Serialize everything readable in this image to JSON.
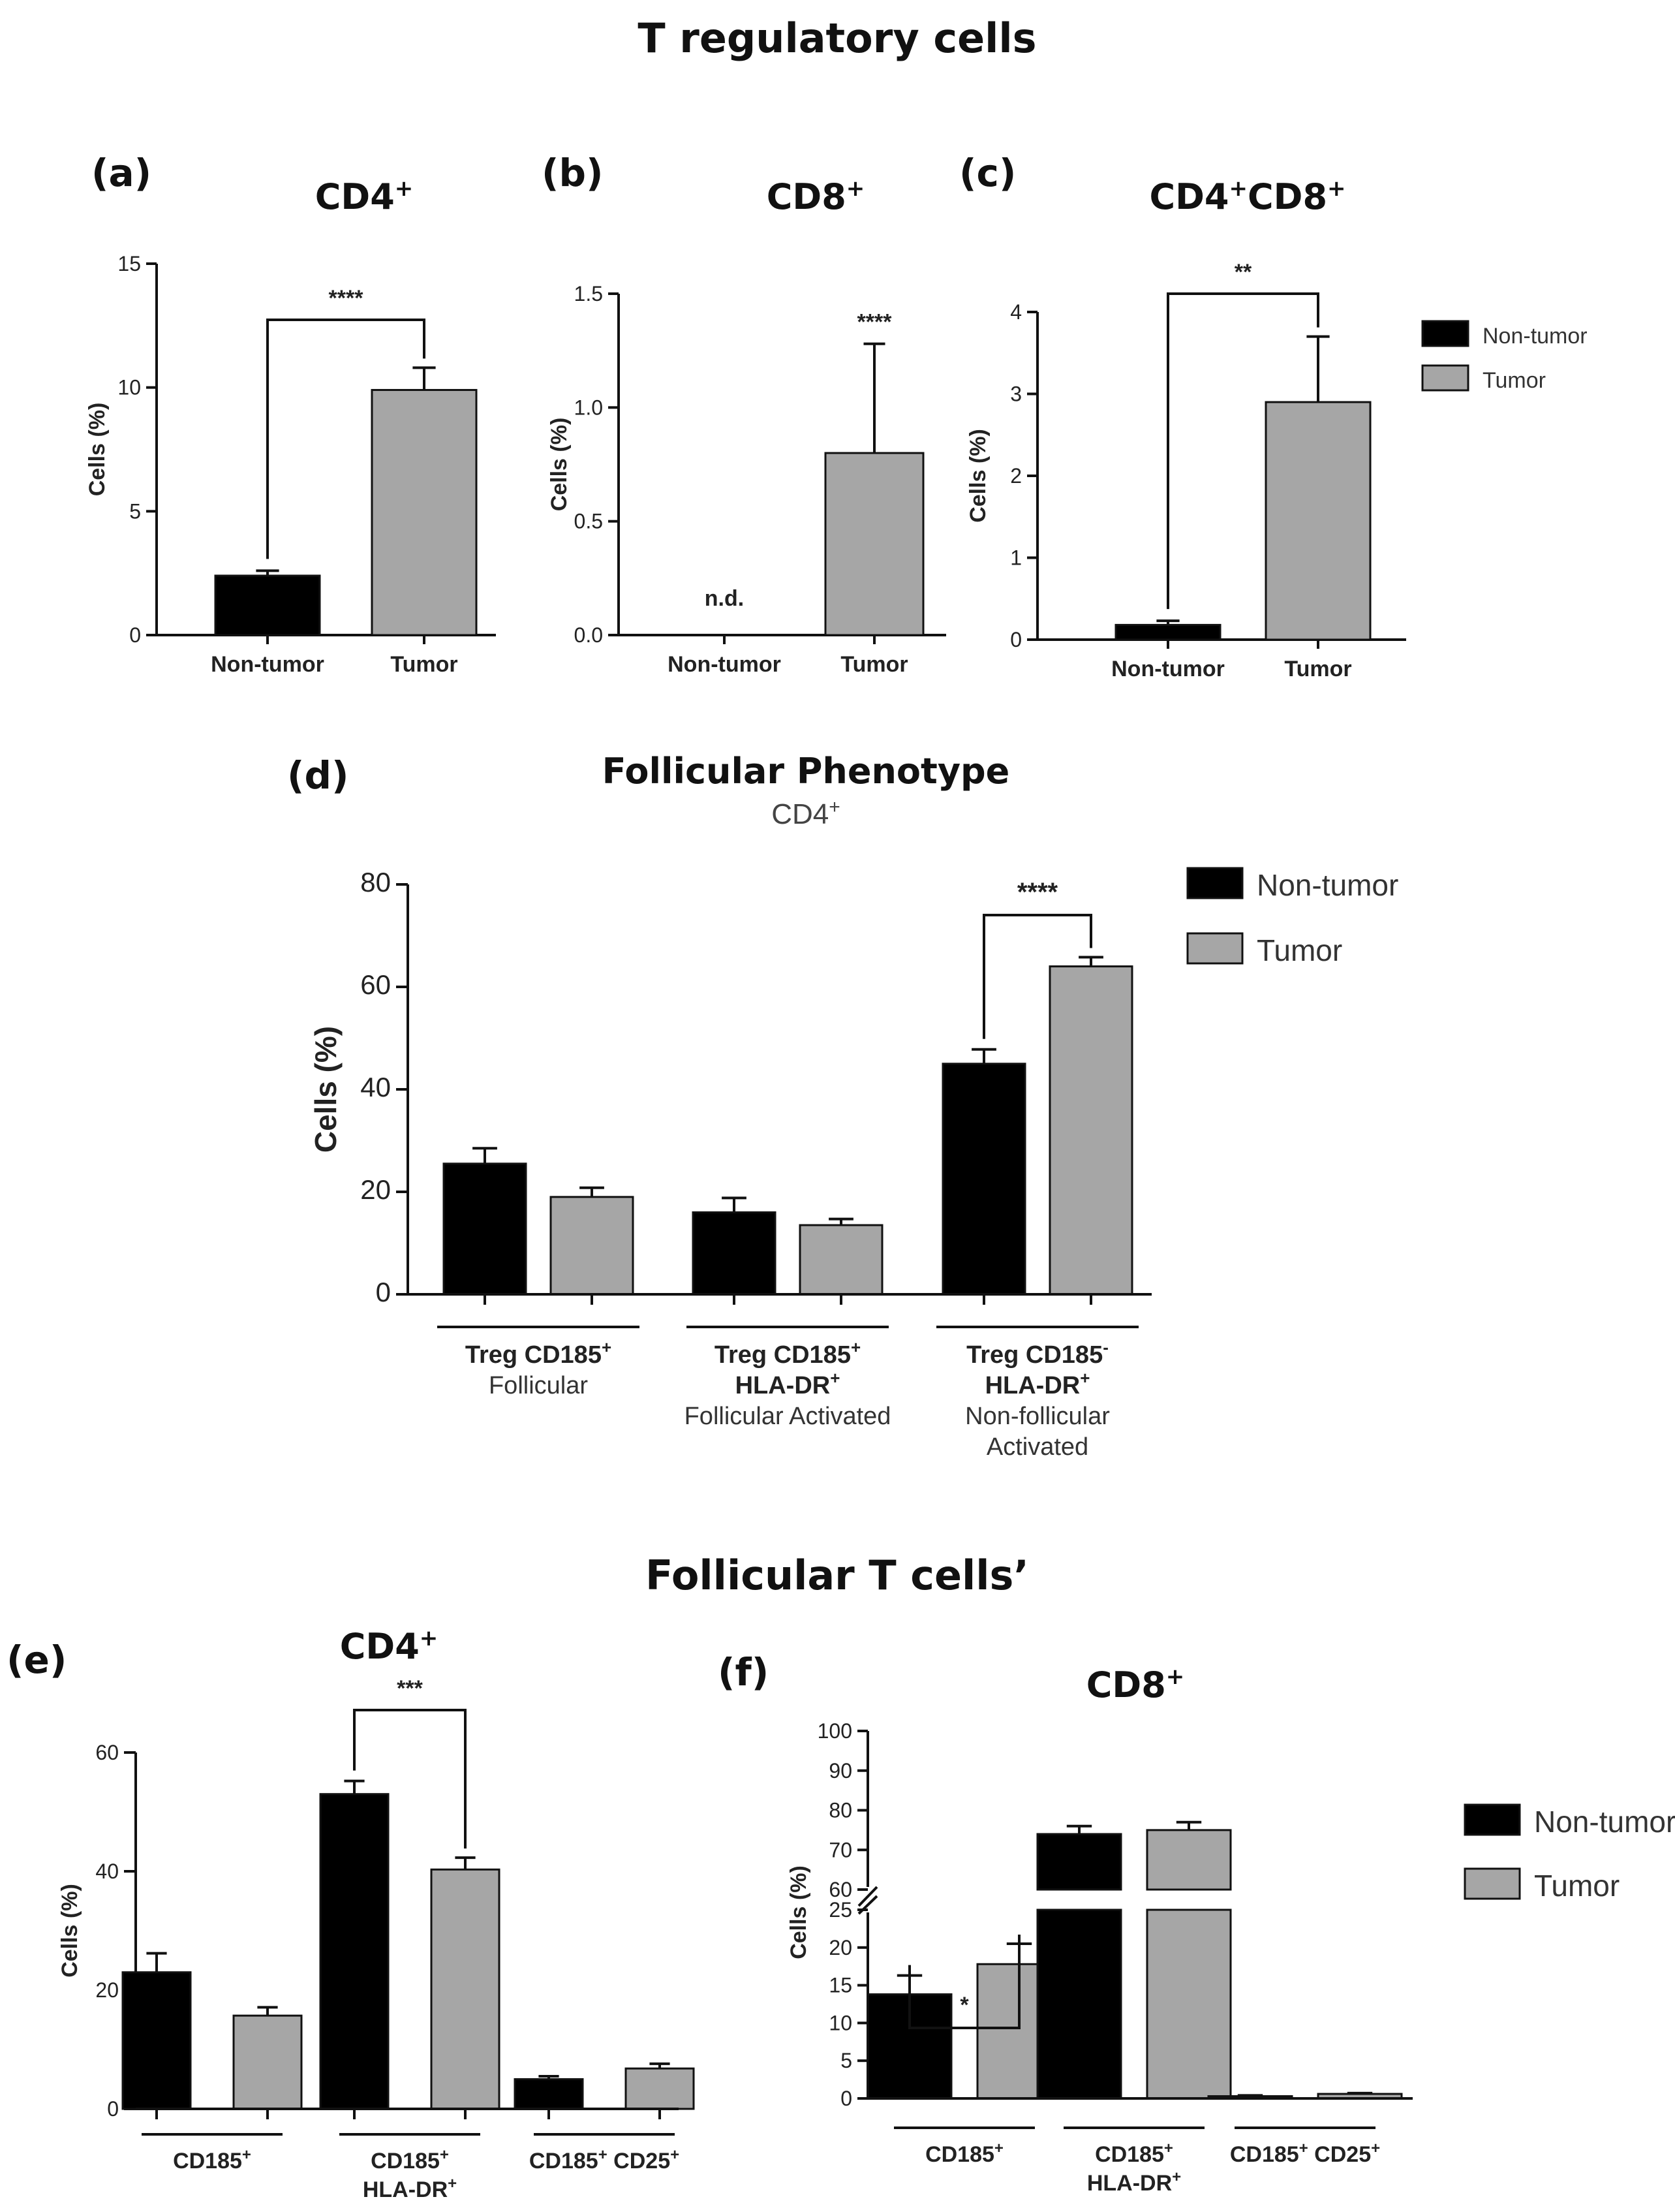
{
  "titles": {
    "section1": "T regulatory cells",
    "section2": "Follicular T cells’"
  },
  "colors": {
    "nontumor": "#000000",
    "tumor": "#a6a6a6"
  },
  "chart_data": [
    {
      "id": "a",
      "letter": "(a)",
      "type": "bar",
      "title": "CD4",
      "title_sup": "+",
      "ylabel": "Cells (%)",
      "ylim": [
        0,
        15
      ],
      "yticks": [
        0,
        5,
        10,
        15
      ],
      "categories": [
        "Non-tumor",
        "Tumor"
      ],
      "series": [
        {
          "name": "Non-tumor",
          "values": [
            2.4,
            null
          ]
        },
        {
          "name": "Tumor",
          "values": [
            null,
            9.9
          ]
        }
      ],
      "bars": [
        {
          "cat": "Non-tumor",
          "value": 2.4,
          "err": 0.2
        },
        {
          "cat": "Tumor",
          "value": 9.9,
          "err": 0.9
        }
      ],
      "significance": [
        {
          "label": "****",
          "from": "Non-tumor",
          "to": "Tumor"
        }
      ]
    },
    {
      "id": "b",
      "letter": "(b)",
      "type": "bar",
      "title": "CD8",
      "title_sup": "+",
      "ylabel": "Cells (%)",
      "ylim": [
        0,
        1.5
      ],
      "yticks": [
        "0.0",
        "0.5",
        "1.0",
        "1.5"
      ],
      "categories": [
        "Non-tumor",
        "Tumor"
      ],
      "bars": [
        {
          "cat": "Non-tumor",
          "value": 0,
          "err": 0,
          "note": "n.d."
        },
        {
          "cat": "Tumor",
          "value": 0.8,
          "err": 0.48
        }
      ],
      "significance": [
        {
          "label": "****",
          "over": "Tumor"
        }
      ]
    },
    {
      "id": "c",
      "letter": "(c)",
      "type": "bar",
      "title": "CD4",
      "title_sup": "+",
      "title2": "CD8",
      "title2_sup": "+",
      "ylabel": "Cells (%)",
      "ylim": [
        0,
        4
      ],
      "yticks": [
        0,
        1,
        2,
        3,
        4
      ],
      "categories": [
        "Non-tumor",
        "Tumor"
      ],
      "bars": [
        {
          "cat": "Non-tumor",
          "value": 0.18,
          "err": 0.05
        },
        {
          "cat": "Tumor",
          "value": 2.9,
          "err": 0.8
        }
      ],
      "significance": [
        {
          "label": "**",
          "from": "Non-tumor",
          "to": "Tumor"
        }
      ],
      "legend": [
        "Non-tumor",
        "Tumor"
      ]
    },
    {
      "id": "d",
      "letter": "(d)",
      "type": "bar",
      "title": "Follicular Phenotype",
      "subtitle": "CD4",
      "subtitle_sup": "+",
      "ylabel": "Cells (%)",
      "ylim": [
        0,
        80
      ],
      "yticks": [
        0,
        20,
        40,
        60,
        80
      ],
      "groups": [
        {
          "label_lines": [
            [
              "Treg CD185",
              "+"
            ]
          ],
          "sub_lines": [
            "Follicular"
          ]
        },
        {
          "label_lines": [
            [
              "Treg CD185",
              "+"
            ],
            [
              "HLA-DR",
              "+"
            ]
          ],
          "sub_lines": [
            "Follicular Activated"
          ]
        },
        {
          "label_lines": [
            [
              "Treg CD185",
              "-"
            ],
            [
              "HLA-DR",
              "+"
            ]
          ],
          "sub_lines": [
            "Non-follicular",
            "Activated"
          ]
        }
      ],
      "series": [
        {
          "name": "Non-tumor",
          "values": [
            25.5,
            16,
            45
          ],
          "errors": [
            3,
            2.8,
            2.8
          ]
        },
        {
          "name": "Tumor",
          "values": [
            19,
            13.5,
            64
          ],
          "errors": [
            1.8,
            1.2,
            1.8
          ]
        }
      ],
      "significance": [
        {
          "label": "****",
          "group": 2
        }
      ],
      "legend": [
        "Non-tumor",
        "Tumor"
      ]
    },
    {
      "id": "e",
      "letter": "(e)",
      "type": "bar",
      "title": "CD4",
      "title_sup": "+",
      "ylabel": "Cells (%)",
      "ylim": [
        0,
        60
      ],
      "yticks": [
        0,
        20,
        40,
        60
      ],
      "groups": [
        {
          "label_lines": [
            [
              "CD185",
              "+"
            ]
          ]
        },
        {
          "label_lines": [
            [
              "CD185",
              "+"
            ],
            [
              "HLA-DR",
              "+"
            ]
          ]
        },
        {
          "label_lines": [
            [
              "CD185",
              "+",
              " CD25",
              "+"
            ]
          ]
        }
      ],
      "series": [
        {
          "name": "Non-tumor",
          "values": [
            23,
            53,
            5
          ],
          "errors": [
            3.2,
            2.2,
            0.5
          ]
        },
        {
          "name": "Tumor",
          "values": [
            15.7,
            40.3,
            6.8
          ],
          "errors": [
            1.4,
            2.0,
            0.8
          ]
        }
      ],
      "significance": [
        {
          "label": "***",
          "group": 1
        }
      ]
    },
    {
      "id": "f",
      "letter": "(f)",
      "type": "bar",
      "title": "CD8",
      "title_sup": "+",
      "ylabel": "Cells (%)",
      "axis_break": [
        25,
        60
      ],
      "yticks_lower": [
        0,
        5,
        10,
        15,
        20,
        25
      ],
      "yticks_upper": [
        60,
        70,
        80,
        90,
        100
      ],
      "groups": [
        {
          "label_lines": [
            [
              "CD185",
              "+"
            ]
          ]
        },
        {
          "label_lines": [
            [
              "CD185",
              "+"
            ],
            [
              "HLA-DR",
              "+"
            ]
          ]
        },
        {
          "label_lines": [
            [
              "CD185",
              "+",
              " CD25",
              "+"
            ]
          ]
        }
      ],
      "series": [
        {
          "name": "Non-tumor",
          "values": [
            13.8,
            74,
            0.3
          ],
          "errors": [
            2.5,
            2,
            0.1
          ]
        },
        {
          "name": "Tumor",
          "values": [
            17.8,
            75,
            0.6
          ],
          "errors": [
            2.7,
            2,
            0.1
          ]
        }
      ],
      "significance": [
        {
          "label": "*",
          "group": 0
        }
      ],
      "legend": [
        "Non-tumor",
        "Tumor"
      ]
    }
  ]
}
